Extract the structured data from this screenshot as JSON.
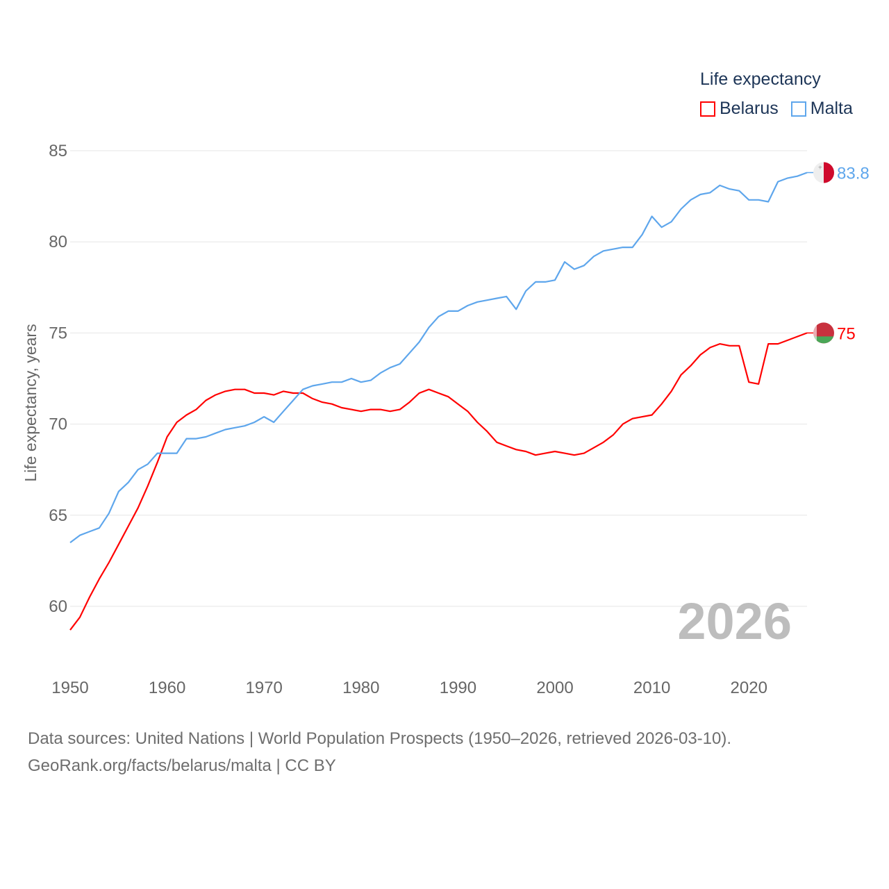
{
  "chart_data": {
    "type": "line",
    "title": "",
    "xlabel": "",
    "ylabel": "Life expectancy, years",
    "xlim": [
      1950,
      2026
    ],
    "ylim": [
      57.5,
      86
    ],
    "yticks": [
      60,
      65,
      70,
      75,
      80,
      85
    ],
    "xticks": [
      1950,
      1960,
      1970,
      1980,
      1990,
      2000,
      2010,
      2020
    ],
    "grid": true,
    "legend_title": "Life expectancy",
    "legend_position": "top-right",
    "year_label": "2026",
    "x": [
      1950,
      1951,
      1952,
      1953,
      1954,
      1955,
      1956,
      1957,
      1958,
      1959,
      1960,
      1961,
      1962,
      1963,
      1964,
      1965,
      1966,
      1967,
      1968,
      1969,
      1970,
      1971,
      1972,
      1973,
      1974,
      1975,
      1976,
      1977,
      1978,
      1979,
      1980,
      1981,
      1982,
      1983,
      1984,
      1985,
      1986,
      1987,
      1988,
      1989,
      1990,
      1991,
      1992,
      1993,
      1994,
      1995,
      1996,
      1997,
      1998,
      1999,
      2000,
      2001,
      2002,
      2003,
      2004,
      2005,
      2006,
      2007,
      2008,
      2009,
      2010,
      2011,
      2012,
      2013,
      2014,
      2015,
      2016,
      2017,
      2018,
      2019,
      2020,
      2021,
      2022,
      2023,
      2024,
      2025,
      2026
    ],
    "series": [
      {
        "name": "Belarus",
        "color": "#ff0000",
        "end_label": "75",
        "values": [
          58.7,
          59.4,
          60.5,
          61.5,
          62.4,
          63.4,
          64.4,
          65.4,
          66.6,
          67.9,
          69.3,
          70.1,
          70.5,
          70.8,
          71.3,
          71.6,
          71.8,
          71.9,
          71.9,
          71.7,
          71.7,
          71.6,
          71.8,
          71.7,
          71.7,
          71.4,
          71.2,
          71.1,
          70.9,
          70.8,
          70.7,
          70.8,
          70.8,
          70.7,
          70.8,
          71.2,
          71.7,
          71.9,
          71.7,
          71.5,
          71.1,
          70.7,
          70.1,
          69.6,
          69.0,
          68.8,
          68.6,
          68.5,
          68.3,
          68.4,
          68.5,
          68.4,
          68.3,
          68.4,
          68.7,
          69.0,
          69.4,
          70.0,
          70.3,
          70.4,
          70.5,
          71.1,
          71.8,
          72.7,
          73.2,
          73.8,
          74.2,
          74.4,
          74.3,
          74.3,
          72.3,
          72.2,
          74.4,
          74.4,
          74.6,
          74.8,
          75.0
        ]
      },
      {
        "name": "Malta",
        "color": "#5ea6ec",
        "end_label": "83.8",
        "values": [
          63.5,
          63.9,
          64.1,
          64.3,
          65.1,
          66.3,
          66.8,
          67.5,
          67.8,
          68.4,
          68.4,
          68.4,
          69.2,
          69.2,
          69.3,
          69.5,
          69.7,
          69.8,
          69.9,
          70.1,
          70.4,
          70.1,
          70.7,
          71.3,
          71.9,
          72.1,
          72.2,
          72.3,
          72.3,
          72.5,
          72.3,
          72.4,
          72.8,
          73.1,
          73.3,
          73.9,
          74.5,
          75.3,
          75.9,
          76.2,
          76.2,
          76.5,
          76.7,
          76.8,
          76.9,
          77.0,
          76.3,
          77.3,
          77.8,
          77.8,
          77.9,
          78.9,
          78.5,
          78.7,
          79.2,
          79.5,
          79.6,
          79.7,
          79.7,
          80.4,
          81.4,
          80.8,
          81.1,
          81.8,
          82.3,
          82.6,
          82.7,
          83.1,
          82.9,
          82.8,
          82.3,
          82.3,
          82.2,
          83.3,
          83.5,
          83.6,
          83.8
        ]
      }
    ]
  },
  "footer": {
    "sources": "Data sources: United Nations | World Population Prospects (1950–2026, retrieved 2026-03-10).",
    "credit": "GeoRank.org/facts/belarus/malta | CC BY"
  }
}
